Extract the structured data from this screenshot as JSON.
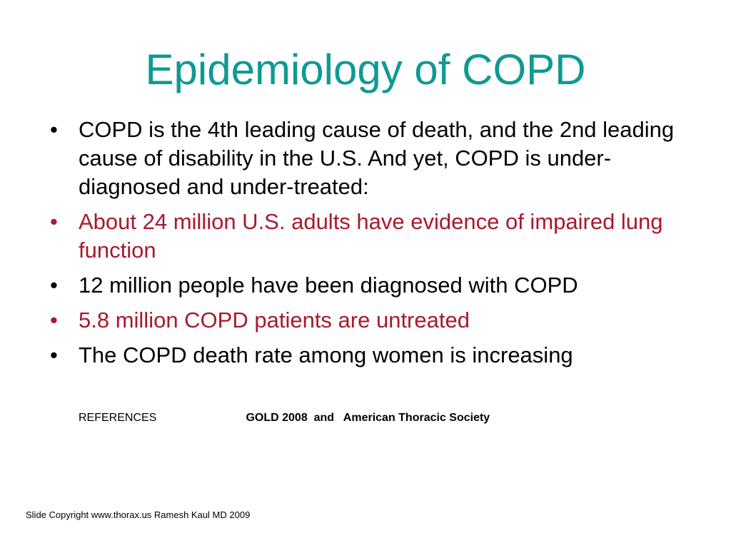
{
  "slide": {
    "title": "Epidemiology of COPD",
    "title_color": "#0e9a93",
    "accent_red": "#a8192e",
    "bullet_glyph": "•",
    "bullets": [
      {
        "text": "COPD is the 4th leading cause of death, and the 2nd leading cause of disability in the U.S.  And yet, COPD is under-diagnosed and under-treated:",
        "color": "black"
      },
      {
        "text": "About 24 million U.S. adults have evidence of impaired lung function",
        "color": "red"
      },
      {
        "text": "12 million people have been diagnosed with COPD",
        "color": "black"
      },
      {
        "text": "5.8 million COPD patients are untreated",
        "color": "red"
      },
      {
        "text": "The COPD death rate among women is increasing",
        "color": "black"
      }
    ],
    "references_label": "REFERENCES",
    "references_sources": "GOLD 2008  and   American Thoracic Society",
    "copyright": "Slide Copyright www.thorax.us Ramesh Kaul MD 2009"
  }
}
